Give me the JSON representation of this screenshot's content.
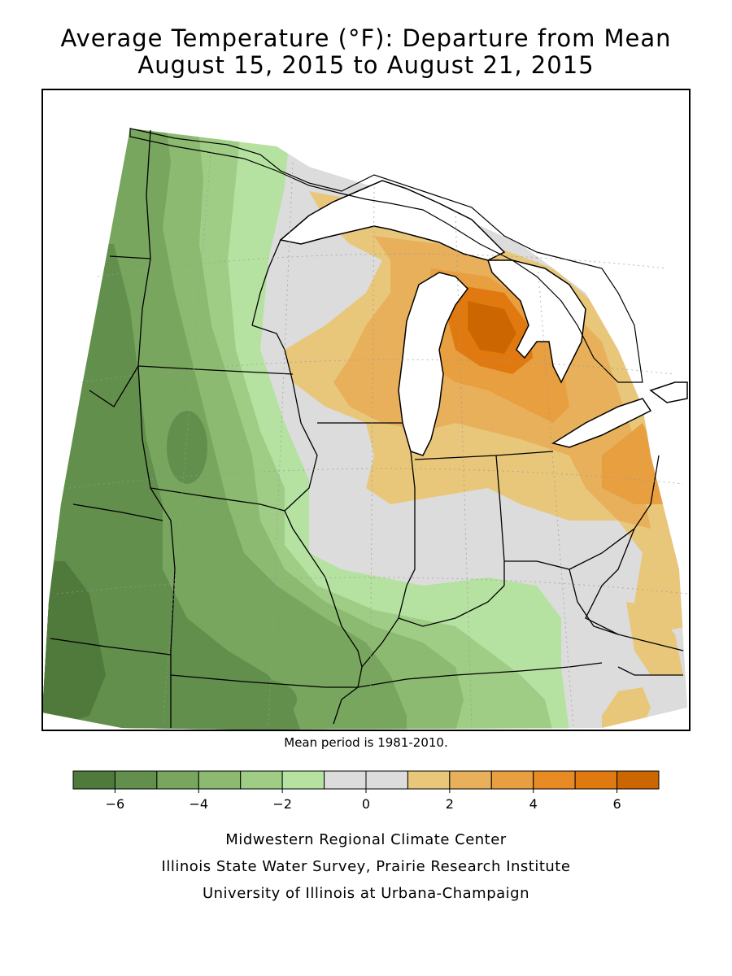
{
  "title": {
    "line1": "Average Temperature (°F): Departure from Mean",
    "line2": "August 15, 2015 to August 21, 2015"
  },
  "note": "Mean period is 1981-2010.",
  "legend": {
    "colors": [
      "#4f7a3c",
      "#638f4d",
      "#79a65e",
      "#8cba70",
      "#a0cd85",
      "#b6e2a1",
      "#dcdcdc",
      "#dcdcdc",
      "#e8c77a",
      "#e8b05a",
      "#e89f3f",
      "#e88b25",
      "#e07a10",
      "#cc6600"
    ],
    "ticks": [
      {
        "value": -6,
        "label": "−6"
      },
      {
        "value": -4,
        "label": "−4"
      },
      {
        "value": -2,
        "label": "−2"
      },
      {
        "value": 0,
        "label": "0"
      },
      {
        "value": 2,
        "label": "2"
      },
      {
        "value": 4,
        "label": "4"
      },
      {
        "value": 6,
        "label": "6"
      }
    ],
    "min": -7,
    "max": 7
  },
  "credits": {
    "line1": "Midwestern Regional Climate Center",
    "line2": "Illinois State Water Survey, Prairie Research Institute",
    "line3": "University of Illinois at Urbana-Champaign"
  },
  "colors": {
    "water": "#ffffff",
    "neutral": "#dcdcdc",
    "border": "#000000"
  }
}
